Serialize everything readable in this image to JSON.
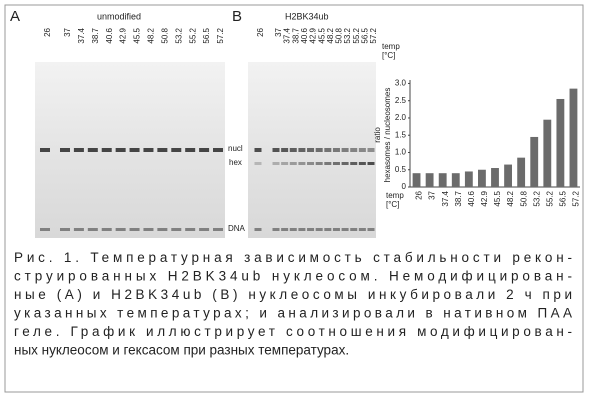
{
  "panel_a": {
    "label": "A",
    "title": "unmodified",
    "lanes": [
      "26",
      "37",
      "37.4",
      "38.7",
      "40.6",
      "42.9",
      "45.5",
      "48.2",
      "50.8",
      "53.2",
      "55.2",
      "56.5",
      "57.2"
    ]
  },
  "panel_b": {
    "label": "B",
    "title": "H2BK34ub",
    "lanes": [
      "26",
      "37",
      "37.4",
      "38.7",
      "40.6",
      "42.9",
      "45.5",
      "48.2",
      "50.8",
      "53.2",
      "55.2",
      "56.5",
      "57.2"
    ],
    "temp_label": [
      "temp",
      "[°C]"
    ]
  },
  "band_labels": {
    "nucl": "nucl",
    "hex": "hex",
    "dna": "DNA"
  },
  "chart_data": {
    "type": "bar",
    "ylabel": [
      "ratio",
      "hexasomes / nucleosomes"
    ],
    "xlabel": [
      "temp",
      "[°C]"
    ],
    "categories": [
      "26",
      "37",
      "37.4",
      "38.7",
      "40.6",
      "42.9",
      "45.5",
      "48.2",
      "50.8",
      "53.2",
      "55.2",
      "56.5",
      "57.2"
    ],
    "values": [
      0.4,
      0.4,
      0.4,
      0.4,
      0.45,
      0.5,
      0.55,
      0.65,
      0.85,
      1.45,
      1.95,
      2.55,
      2.85
    ],
    "color": "#6b6b6b",
    "ylim": [
      0,
      3.1
    ],
    "yticks": [
      0,
      0.5,
      {
        "value": 1,
        "label": "1.0"
      },
      1.5,
      {
        "value": 2,
        "label": "2.0"
      },
      2.5,
      {
        "value": 3,
        "label": "3.0"
      }
    ]
  },
  "caption": [
    "Рис. 1. Температурная зависимость стабильности рекон-",
    "струированных H2BK34ub нуклеосом. Немодифицирован-",
    "ные (A) и H2BK34ub (B) нуклеосомы инкубировали 2 ч при",
    "указанных температурах; и анализировали в нативном ПАА",
    "геле. График иллюстрирует соотношения модифицирован-",
    "ных нуклеосом и гексасом при разных температурах."
  ]
}
